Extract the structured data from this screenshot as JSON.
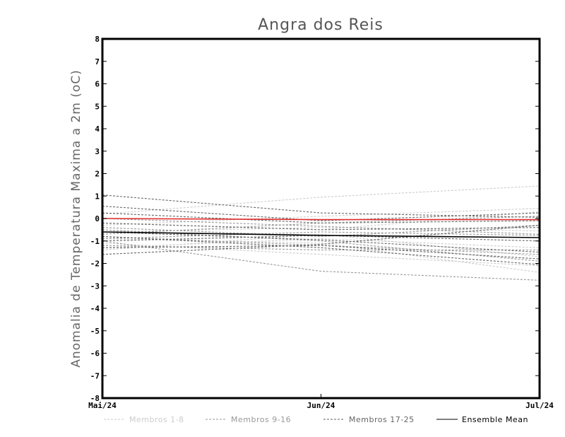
{
  "chart_data": {
    "type": "line",
    "title": "Angra dos Reis",
    "xlabel": "",
    "ylabel": "Anomalia de Temperatura Maxima a 2m (oC)",
    "x": [
      "Mai/24",
      "Jun/24",
      "Jul/24"
    ],
    "xlim": [
      0,
      2
    ],
    "ylim": [
      -8,
      8
    ],
    "yticks": [
      "8",
      "7",
      "6",
      "5",
      "4",
      "3",
      "2",
      "1",
      "0",
      "-1",
      "-2",
      "-3",
      "-4",
      "-5",
      "-6",
      "-7",
      "-8"
    ],
    "grid": false,
    "legend_position": "bottom",
    "groups": [
      {
        "name": "Membros 1-8",
        "color": "#cccccc",
        "dash": "dashed"
      },
      {
        "name": "Membros 9-16",
        "color": "#999999",
        "dash": "dashed"
      },
      {
        "name": "Membros 17-25",
        "color": "#666666",
        "dash": "dashed"
      },
      {
        "name": "Ensemble Mean",
        "color": "#000000",
        "dash": "solid"
      }
    ],
    "observed_color": "#e03030",
    "series": [
      {
        "group": 0,
        "values": [
          0.2,
          0.95,
          1.45
        ]
      },
      {
        "group": 0,
        "values": [
          -0.3,
          0.1,
          0.45
        ]
      },
      {
        "group": 0,
        "values": [
          -0.9,
          -1.1,
          -2.4
        ]
      },
      {
        "group": 0,
        "values": [
          -1.1,
          -1.6,
          -2.1
        ]
      },
      {
        "group": 0,
        "values": [
          -0.6,
          -0.4,
          -0.55
        ]
      },
      {
        "group": 0,
        "values": [
          -1.4,
          -0.7,
          -1.7
        ]
      },
      {
        "group": 0,
        "values": [
          -0.2,
          -0.5,
          0.3
        ]
      },
      {
        "group": 0,
        "values": [
          -1.3,
          -0.9,
          -1.3
        ]
      },
      {
        "group": 1,
        "values": [
          -0.8,
          -1.2,
          -1.6
        ]
      },
      {
        "group": 1,
        "values": [
          -1.0,
          -2.35,
          -2.75
        ]
      },
      {
        "group": 1,
        "values": [
          -0.4,
          -0.8,
          -0.3
        ]
      },
      {
        "group": 1,
        "values": [
          -0.7,
          -0.2,
          0.1
        ]
      },
      {
        "group": 1,
        "values": [
          0.0,
          -0.35,
          -0.7
        ]
      },
      {
        "group": 1,
        "values": [
          -1.2,
          -1.4,
          -1.4
        ]
      },
      {
        "group": 1,
        "values": [
          -0.5,
          -1.0,
          -1.9
        ]
      },
      {
        "group": 1,
        "values": [
          -0.9,
          -0.6,
          -0.75
        ]
      },
      {
        "group": 2,
        "values": [
          1.05,
          0.25,
          0.05
        ]
      },
      {
        "group": 2,
        "values": [
          0.55,
          -0.1,
          0.25
        ]
      },
      {
        "group": 2,
        "values": [
          -1.6,
          -1.15,
          -0.3
        ]
      },
      {
        "group": 2,
        "values": [
          -0.8,
          -1.3,
          -2.05
        ]
      },
      {
        "group": 2,
        "values": [
          -0.2,
          -0.5,
          -0.4
        ]
      },
      {
        "group": 2,
        "values": [
          -1.3,
          -1.2,
          -1.8
        ]
      },
      {
        "group": 2,
        "values": [
          -0.6,
          -0.95,
          -1.5
        ]
      },
      {
        "group": 2,
        "values": [
          -1.0,
          -0.75,
          -1.0
        ]
      },
      {
        "group": 2,
        "values": [
          0.25,
          -0.2,
          -0.1
        ]
      },
      {
        "group": 3,
        "values": [
          -0.6,
          -0.75,
          -0.85
        ]
      }
    ],
    "observed": {
      "values": [
        0.0,
        -0.05,
        -0.05
      ]
    }
  }
}
